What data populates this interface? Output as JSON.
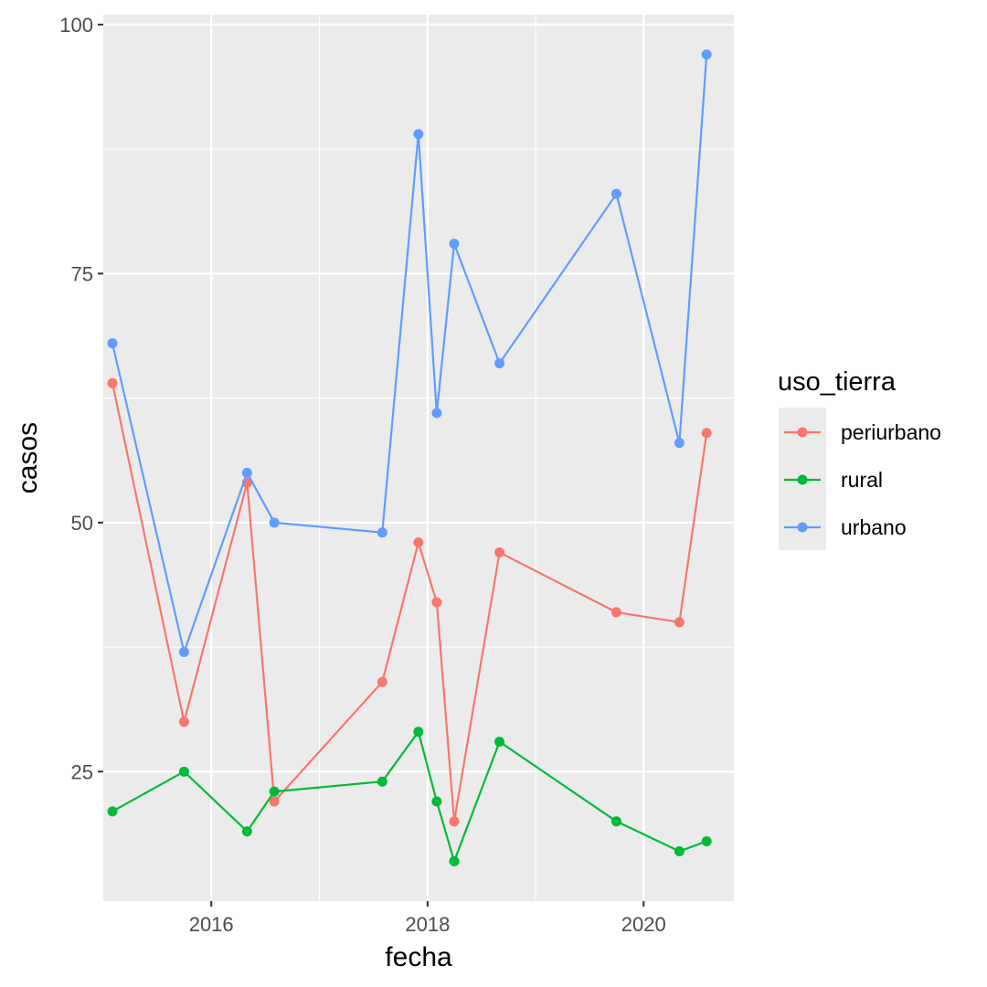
{
  "chart_data": {
    "type": "line",
    "xlabel": "fecha",
    "ylabel": "casos",
    "xlim": [
      "2015-01-01",
      "2020-11-01"
    ],
    "ylim": [
      12,
      101
    ],
    "x_ticks": [
      "2016-01-01",
      "2018-01-01",
      "2020-01-01"
    ],
    "x_tick_labels": [
      "2016",
      "2018",
      "2020"
    ],
    "y_ticks": [
      25,
      50,
      75,
      100
    ],
    "y_tick_labels": [
      "25",
      "50",
      "75",
      "100"
    ],
    "grid": true,
    "legend": {
      "title": "uso_tierra",
      "placement": "right"
    },
    "x": [
      "2015-02-01",
      "2015-10-01",
      "2016-05-01",
      "2016-08-01",
      "2017-08-01",
      "2017-12-01",
      "2018-02-01",
      "2018-04-01",
      "2018-09-01",
      "2019-10-01",
      "2020-05-01",
      "2020-08-01"
    ],
    "series": [
      {
        "name": "periurbano",
        "color": "#F8766D",
        "values": [
          64,
          30,
          54,
          22,
          34,
          48,
          42,
          20,
          47,
          41,
          40,
          59
        ]
      },
      {
        "name": "rural",
        "color": "#00BA38",
        "values": [
          21,
          25,
          19,
          23,
          24,
          29,
          22,
          16,
          28,
          20,
          17,
          18
        ]
      },
      {
        "name": "urbano",
        "color": "#619CFF",
        "values": [
          68,
          37,
          55,
          50,
          49,
          89,
          61,
          78,
          66,
          83,
          58,
          97
        ]
      }
    ]
  }
}
